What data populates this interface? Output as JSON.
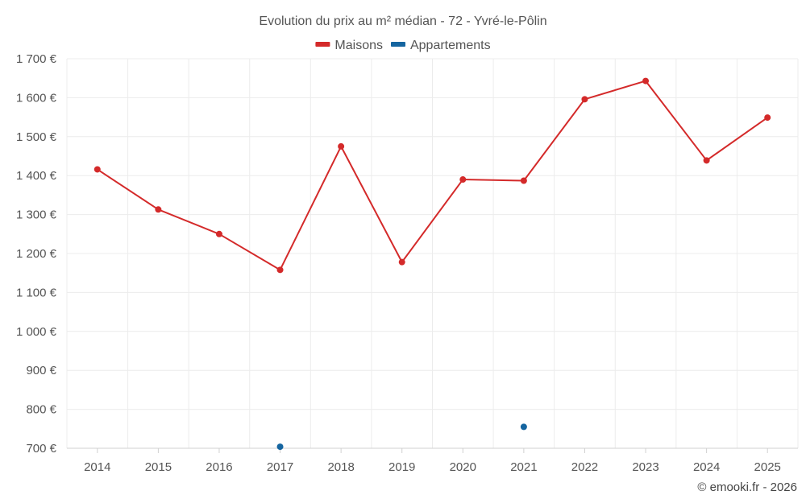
{
  "chart_data": {
    "type": "line",
    "title": "Evolution du prix au m² médian - 72 - Yvré-le-Pôlin",
    "categories": [
      "2014",
      "2015",
      "2016",
      "2017",
      "2018",
      "2019",
      "2020",
      "2021",
      "2022",
      "2023",
      "2024",
      "2025"
    ],
    "y_tick_labels": [
      "1 700 €",
      "1 600 €",
      "1 500 €",
      "1 400 €",
      "1 300 €",
      "1 200 €",
      "1 100 €",
      "1 000 €",
      "900 €",
      "800 €",
      "700 €"
    ],
    "y_ticks": [
      1700,
      1600,
      1500,
      1400,
      1300,
      1200,
      1100,
      1000,
      900,
      800,
      700
    ],
    "ylim": [
      700,
      1700
    ],
    "xlabel": "",
    "ylabel": "",
    "grid": true,
    "legend_position": "top-center",
    "series": [
      {
        "name": "Maisons",
        "color": "#d42a2a",
        "style": "line-with-markers",
        "values": [
          1416,
          1313,
          1250,
          1158,
          1475,
          1178,
          1390,
          1387,
          1596,
          1643,
          1439,
          1549
        ]
      },
      {
        "name": "Appartements",
        "color": "#1565a0",
        "style": "markers",
        "values": [
          null,
          null,
          null,
          704,
          null,
          null,
          null,
          755,
          null,
          null,
          null,
          null
        ]
      }
    ]
  },
  "credit": "© emooki.fr - 2026"
}
